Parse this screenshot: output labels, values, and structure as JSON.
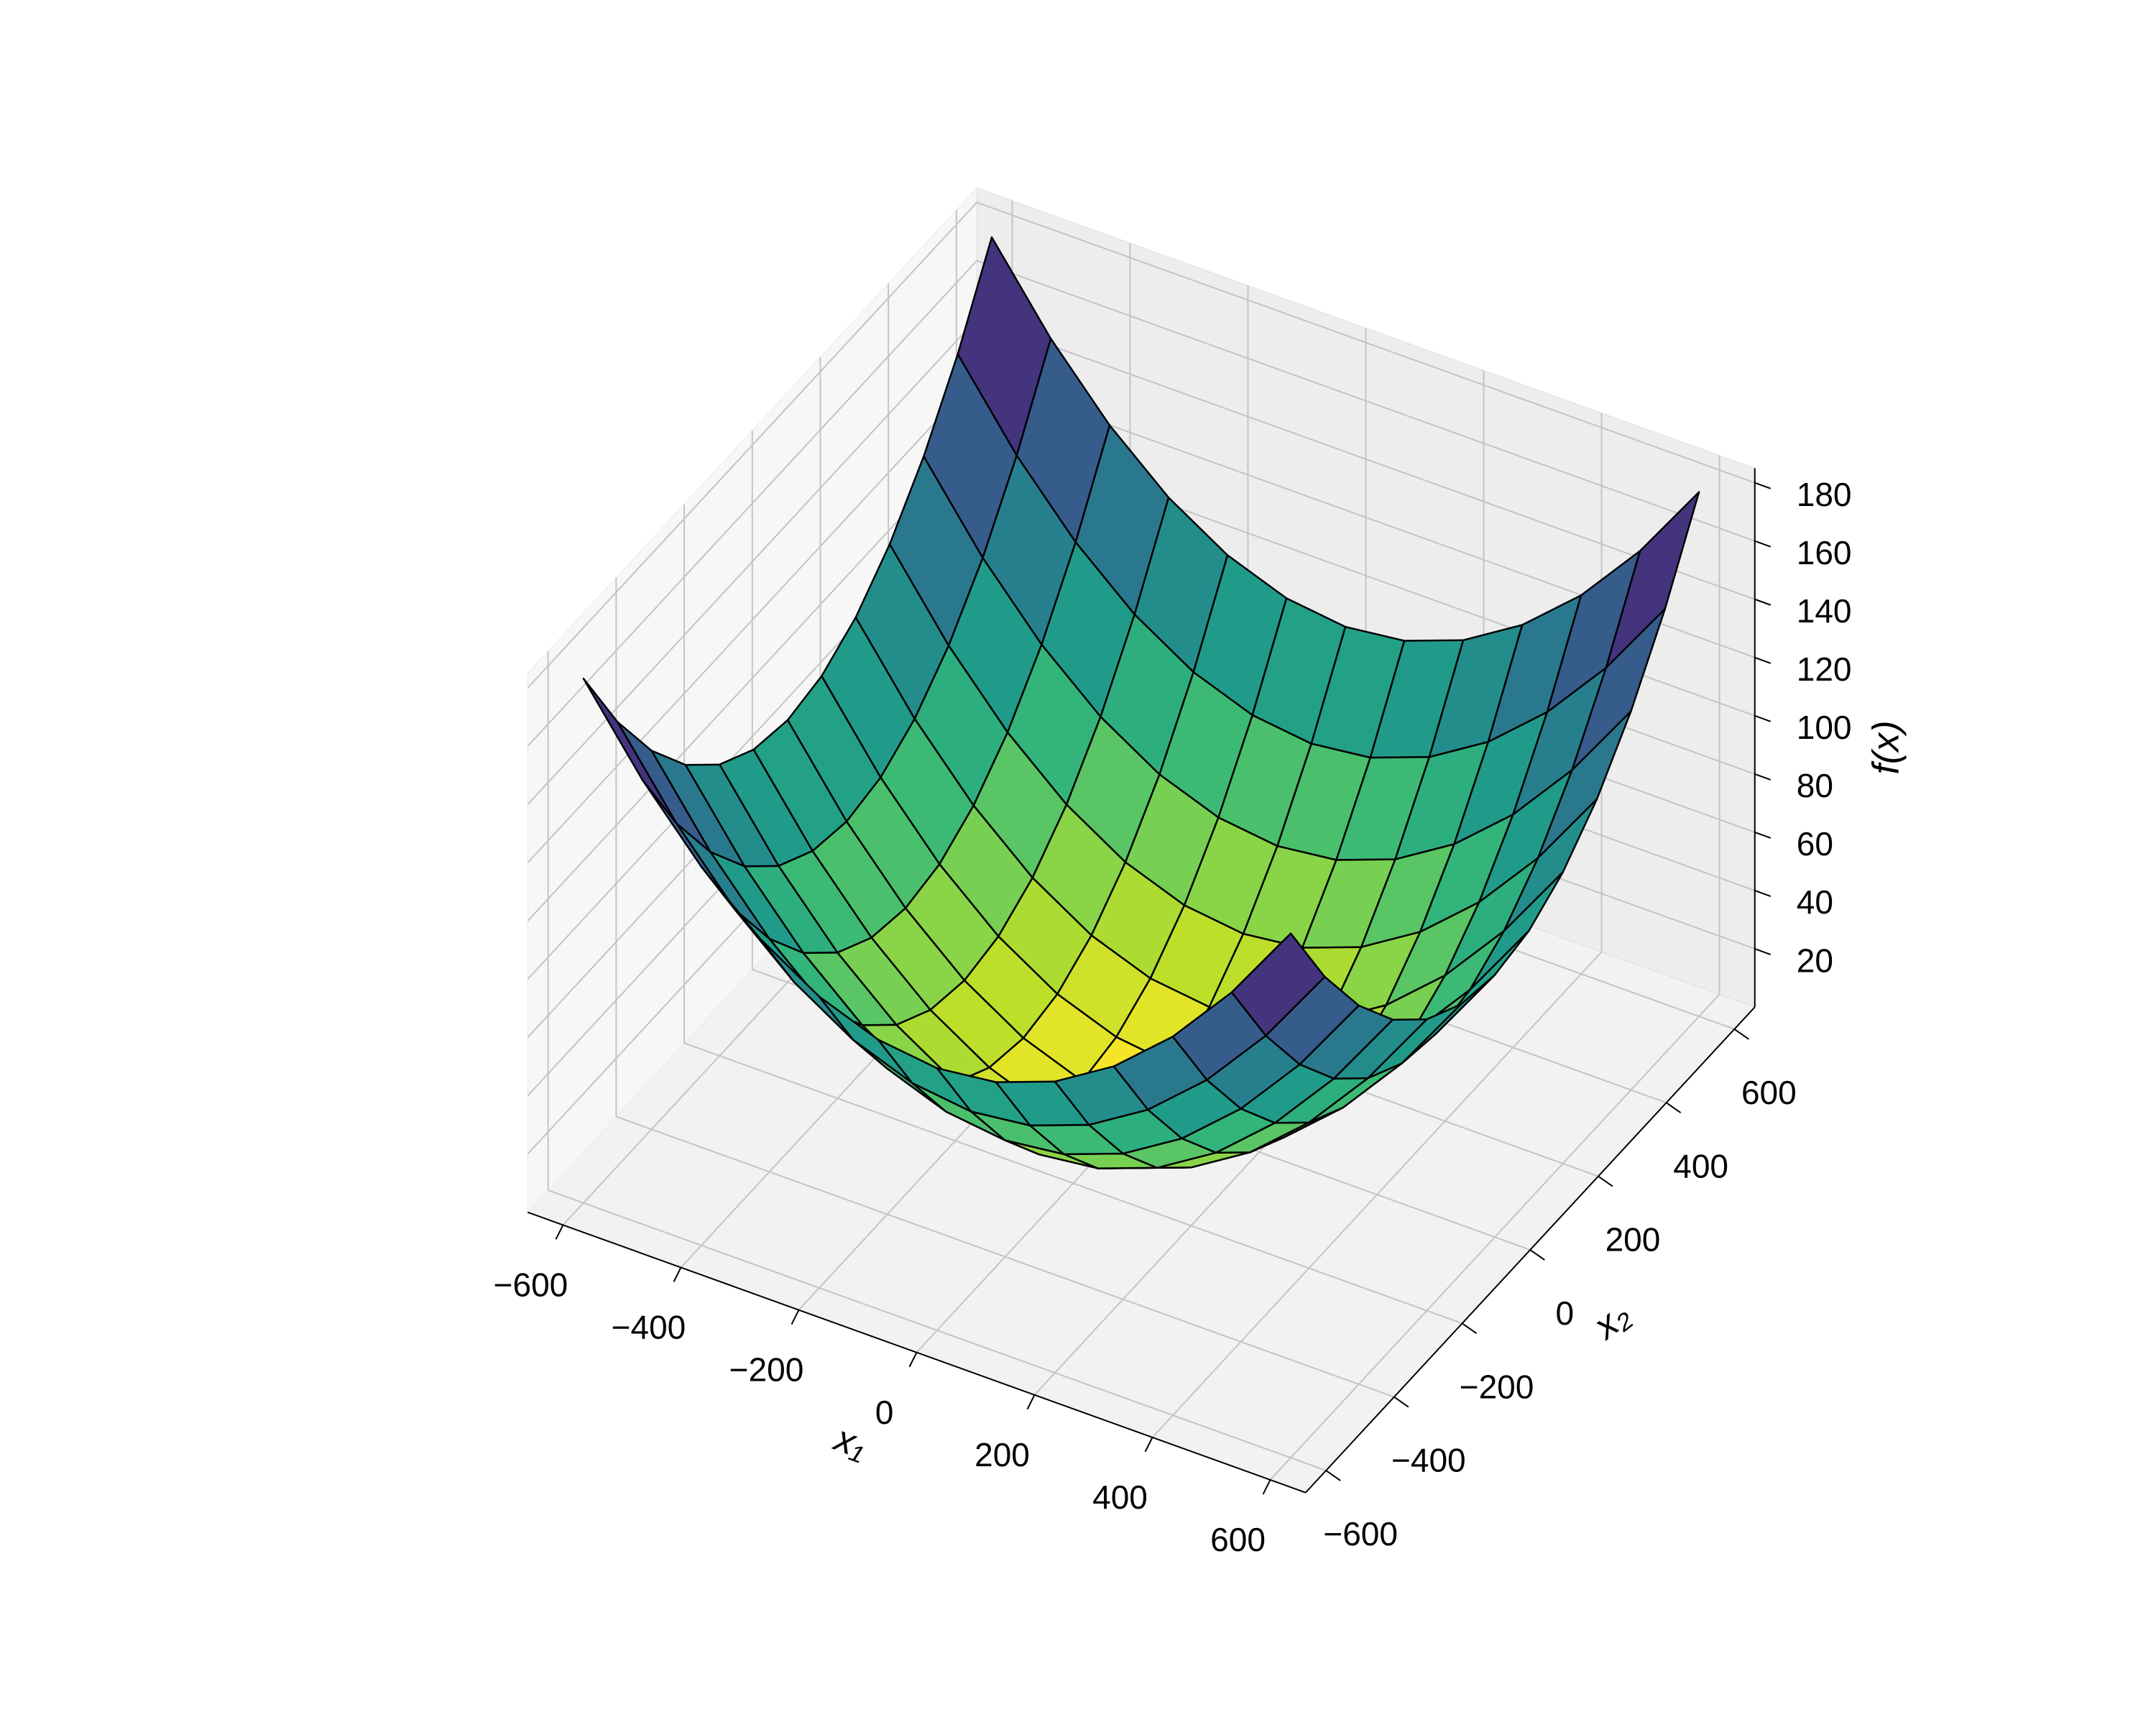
{
  "chart_data": {
    "type": "surface",
    "xlabel": "x₁",
    "ylabel": "x₂",
    "zlabel": "f(x)",
    "x": [
      -600,
      -500,
      -400,
      -300,
      -200,
      -100,
      0,
      100,
      200,
      300,
      400,
      500,
      600
    ],
    "y": [
      -600,
      -500,
      -400,
      -300,
      -200,
      -100,
      0,
      100,
      200,
      300,
      400,
      500,
      600
    ],
    "z": [
      [
        180,
        152.5,
        130,
        112.5,
        100,
        92.5,
        90,
        92.5,
        100,
        112.5,
        130,
        152.5,
        180
      ],
      [
        152.5,
        125,
        102.5,
        85,
        72.5,
        65,
        62.5,
        65,
        72.5,
        85,
        102.5,
        125,
        152.5
      ],
      [
        130,
        102.5,
        80,
        62.5,
        50,
        42.5,
        40,
        42.5,
        50,
        62.5,
        80,
        102.5,
        130
      ],
      [
        112.5,
        85,
        62.5,
        45,
        32.5,
        25,
        22.5,
        25,
        32.5,
        45,
        62.5,
        85,
        112.5
      ],
      [
        100,
        72.5,
        50,
        32.5,
        20,
        12.5,
        10,
        12.5,
        20,
        32.5,
        50,
        72.5,
        100
      ],
      [
        92.5,
        65,
        42.5,
        25,
        12.5,
        5,
        2.5,
        5,
        12.5,
        25,
        42.5,
        65,
        92.5
      ],
      [
        90,
        62.5,
        40,
        22.5,
        10,
        2.5,
        0,
        2.5,
        10,
        22.5,
        40,
        62.5,
        90
      ],
      [
        92.5,
        65,
        42.5,
        25,
        12.5,
        5,
        2.5,
        5,
        12.5,
        25,
        42.5,
        65,
        92.5
      ],
      [
        100,
        72.5,
        50,
        32.5,
        20,
        12.5,
        10,
        12.5,
        20,
        32.5,
        50,
        72.5,
        100
      ],
      [
        112.5,
        85,
        62.5,
        45,
        32.5,
        25,
        22.5,
        25,
        32.5,
        45,
        62.5,
        85,
        112.5
      ],
      [
        130,
        102.5,
        80,
        62.5,
        50,
        42.5,
        40,
        42.5,
        50,
        62.5,
        80,
        102.5,
        130
      ],
      [
        152.5,
        125,
        102.5,
        85,
        72.5,
        65,
        62.5,
        65,
        72.5,
        85,
        102.5,
        125,
        152.5
      ],
      [
        180,
        152.5,
        130,
        112.5,
        100,
        92.5,
        90,
        92.5,
        100,
        112.5,
        130,
        152.5,
        180
      ]
    ],
    "colormap": "viridis_r",
    "edgecolor": "#000000",
    "xlim": [
      -660,
      660
    ],
    "ylim": [
      -660,
      660
    ],
    "zlim": [
      0,
      185
    ],
    "xticks": [
      {
        "value": -600,
        "label": "−600"
      },
      {
        "value": -400,
        "label": "−400"
      },
      {
        "value": -200,
        "label": "−200"
      },
      0,
      200,
      400,
      600
    ],
    "yticks": [
      {
        "value": -600,
        "label": "−600"
      },
      {
        "value": -400,
        "label": "−400"
      },
      {
        "value": -200,
        "label": "−200"
      },
      0,
      200,
      400,
      600
    ],
    "zticks": [
      20,
      40,
      60,
      80,
      100,
      120,
      140,
      160,
      180
    ],
    "grid": true
  }
}
